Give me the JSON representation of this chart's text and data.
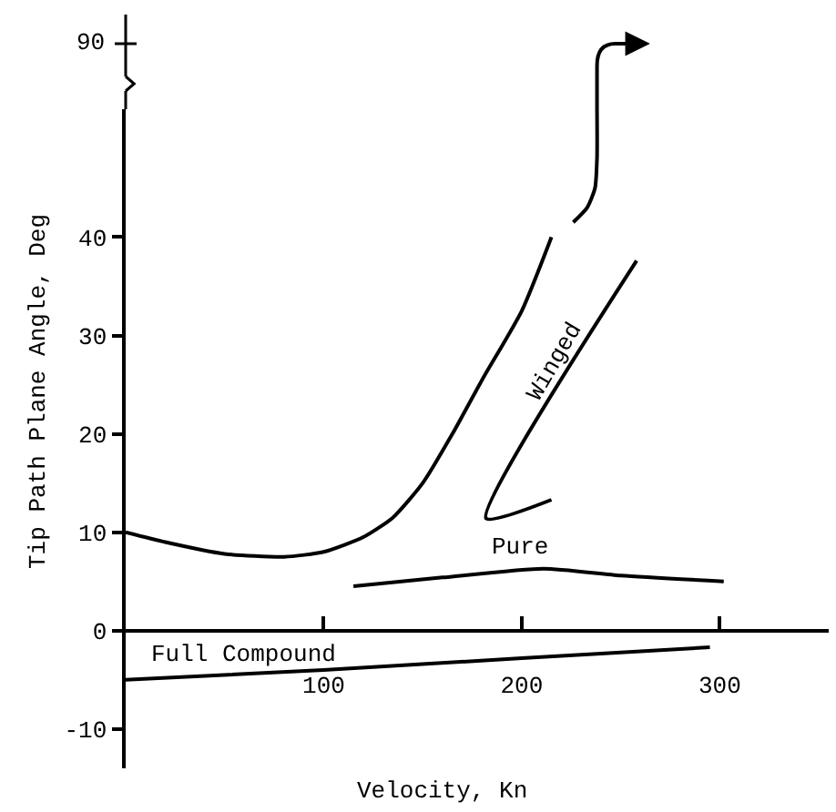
{
  "chart_data": {
    "type": "line",
    "xlim": [
      0,
      355
    ],
    "ylim": [
      -14,
      53
    ],
    "xticks": [
      100,
      200,
      300
    ],
    "yticks": [
      -10,
      0,
      10,
      20,
      30,
      40
    ],
    "legend": false,
    "marker": "none",
    "line_style": "solid",
    "xlabel": "Velocity, Kn",
    "ylabel": "Tip Path Plane Angle, Deg",
    "series": [
      {
        "color": "#000000",
        "x": [
          0,
          20,
          50,
          80,
          100,
          120,
          135,
          150,
          165,
          180,
          200,
          215
        ],
        "values": [
          10,
          9,
          7.8,
          7.5,
          8,
          9.5,
          11.5,
          15,
          20,
          25.5,
          32.5,
          40
        ]
      },
      {
        "color": "#000000",
        "x": [
          226,
          233,
          237,
          238,
          238
        ],
        "values": [
          41.5,
          43,
          45,
          48,
          53
        ]
      },
      {
        "name": "Winged",
        "color": "#000000",
        "x": [
          258,
          182,
          215
        ],
        "values": [
          37.6,
          11.4,
          13.3
        ]
      },
      {
        "name": "Pure",
        "color": "#000000",
        "x": [
          115,
          160,
          211,
          250,
          302
        ],
        "values": [
          4.5,
          5.4,
          6.3,
          5.6,
          5.0
        ]
      },
      {
        "name": "Full Compound",
        "color": "#000000",
        "x": [
          0,
          100,
          200,
          295
        ],
        "values": [
          -5,
          -4,
          -2.8,
          -1.7
        ]
      }
    ],
    "annotations": [
      "90"
    ]
  }
}
